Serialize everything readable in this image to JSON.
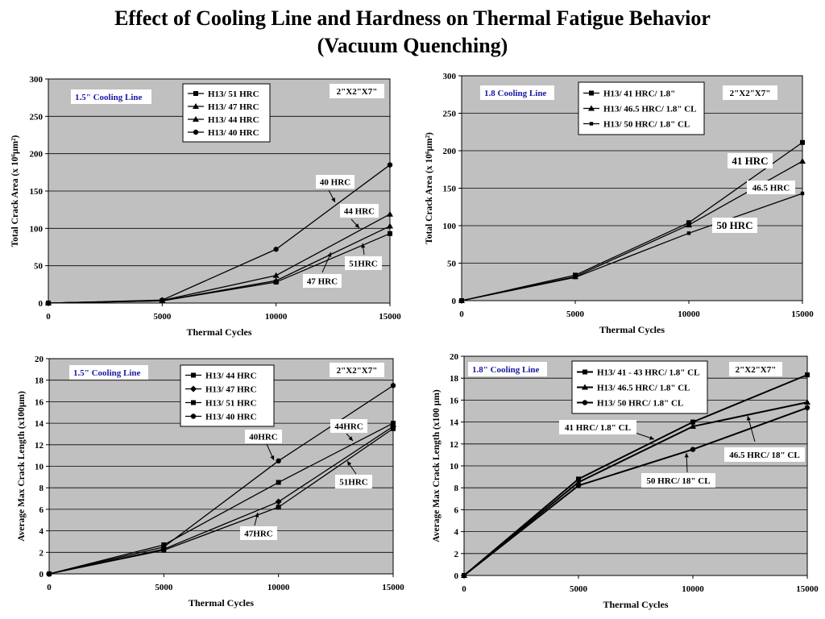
{
  "title_line1": "Effect of Cooling Line and Hardness on Thermal Fatigue Behavior",
  "title_line2": "(Vacuum Quenching)",
  "colors": {
    "plot_bg": "#c0c0c0",
    "line": "#000000",
    "cooling_label": "#1a1aa6"
  },
  "chart_data": [
    {
      "type": "line",
      "xlabel": "Thermal Cycles",
      "ylabel": "Total Crack Area  (x 10⁶µm²)",
      "xlim": [
        0,
        15000
      ],
      "ylim": [
        0,
        300
      ],
      "xticks": [
        0,
        5000,
        10000,
        15000
      ],
      "yticks": [
        0,
        50,
        100,
        150,
        200,
        250,
        300
      ],
      "grid": true,
      "legend_position": "top-center",
      "cooling_label": "1.5\" Cooling Line",
      "size_label": "2\"X2\"X7\"",
      "x": [
        0,
        5000,
        10000,
        15000
      ],
      "series": [
        {
          "name": "H13/ 51 HRC",
          "marker": "square",
          "values": [
            0,
            3,
            28,
            93
          ]
        },
        {
          "name": "H13/ 47 HRC",
          "marker": "triangle",
          "values": [
            0,
            3,
            30,
            103
          ]
        },
        {
          "name": "H13/ 44 HRC",
          "marker": "triangle",
          "values": [
            0,
            3.5,
            37,
            119
          ]
        },
        {
          "name": "H13/ 40 HRC",
          "marker": "circle",
          "values": [
            0,
            4,
            72,
            185
          ]
        }
      ],
      "annotations": [
        {
          "text": "40 HRC"
        },
        {
          "text": "44 HRC"
        },
        {
          "text": "51HRC"
        },
        {
          "text": "47 HRC"
        }
      ]
    },
    {
      "type": "line",
      "xlabel": "Thermal Cycles",
      "ylabel": "Total Crack Area  (x 10⁶µm²)",
      "xlim": [
        0,
        15000
      ],
      "ylim": [
        0,
        300
      ],
      "xticks": [
        0,
        5000,
        10000,
        15000
      ],
      "yticks": [
        0,
        50,
        100,
        150,
        200,
        250,
        300
      ],
      "grid": true,
      "legend_position": "top-center",
      "cooling_label": "1.8 Cooling Line",
      "size_label": "2\"X2\"X7\"",
      "x": [
        0,
        5000,
        10000,
        15000
      ],
      "series": [
        {
          "name": "H13/ 41 HRC/ 1.8\"",
          "marker": "square",
          "values": [
            0,
            34,
            104,
            211
          ]
        },
        {
          "name": "H13/ 46.5 HRC/ 1.8\" CL",
          "marker": "triangle",
          "values": [
            0,
            32,
            101,
            186
          ]
        },
        {
          "name": "H13/ 50 HRC/ 1.8\" CL",
          "marker": "small-square",
          "values": [
            0,
            31,
            90,
            143
          ]
        }
      ],
      "annotations": [
        {
          "text": "41 HRC"
        },
        {
          "text": "46.5 HRC"
        },
        {
          "text": "50 HRC"
        }
      ]
    },
    {
      "type": "line",
      "xlabel": "Thermal Cycles",
      "ylabel": "Average Max Crack Length  (x100µm)",
      "xlim": [
        0,
        15000
      ],
      "ylim": [
        0,
        20
      ],
      "xticks": [
        0,
        5000,
        10000,
        15000
      ],
      "yticks": [
        0,
        2,
        4,
        6,
        8,
        10,
        12,
        14,
        16,
        18,
        20
      ],
      "grid": true,
      "legend_position": "top-center",
      "cooling_label": "1.5\" Cooling Line",
      "size_label": "2\"X2\"X7\"",
      "x": [
        0,
        5000,
        10000,
        15000
      ],
      "series": [
        {
          "name": "H13/ 44 HRC",
          "marker": "square",
          "values": [
            0,
            2.7,
            8.5,
            14.0
          ]
        },
        {
          "name": "H13/ 47 HRC",
          "marker": "diamond",
          "values": [
            0,
            2.3,
            6.7,
            13.7
          ]
        },
        {
          "name": "H13/ 51 HRC",
          "marker": "square",
          "values": [
            0,
            2.2,
            6.2,
            13.5
          ]
        },
        {
          "name": "H13/ 40 HRC",
          "marker": "circle",
          "values": [
            0,
            2.5,
            10.5,
            17.5
          ]
        }
      ],
      "annotations": [
        {
          "text": "40HRC"
        },
        {
          "text": "44HRC"
        },
        {
          "text": "51HRC"
        },
        {
          "text": "47HRC"
        }
      ]
    },
    {
      "type": "line",
      "xlabel": "Thermal Cycles",
      "ylabel": "Average Max Crack Length  (x100 µm)",
      "xlim": [
        0,
        15000
      ],
      "ylim": [
        0,
        20
      ],
      "xticks": [
        0,
        5000,
        10000,
        15000
      ],
      "yticks": [
        0,
        2,
        4,
        6,
        8,
        10,
        12,
        14,
        16,
        18,
        20
      ],
      "grid": true,
      "legend_position": "top-center",
      "cooling_label": "1.8\" Cooling Line",
      "size_label": "2\"X2\"X7\"",
      "x": [
        0,
        5000,
        10000,
        15000
      ],
      "series": [
        {
          "name": "H13/ 41 - 43 HRC/ 1.8\" CL",
          "marker": "square",
          "values": [
            0,
            8.8,
            14.0,
            18.3
          ]
        },
        {
          "name": "H13/ 46.5 HRC/ 1.8\" CL",
          "marker": "triangle",
          "values": [
            0,
            8.5,
            13.6,
            15.8
          ]
        },
        {
          "name": "H13/ 50 HRC/ 1.8\" CL",
          "marker": "circle",
          "values": [
            0,
            8.2,
            11.5,
            15.3
          ]
        }
      ],
      "annotations": [
        {
          "text": "41 HRC/ 1.8\" CL"
        },
        {
          "text": "46.5 HRC/ 18\" CL"
        },
        {
          "text": "50 HRC/ 18\" CL"
        }
      ]
    }
  ]
}
